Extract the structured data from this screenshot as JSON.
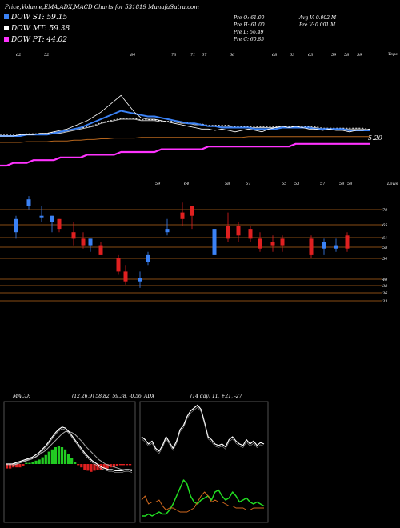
{
  "header": {
    "title": "Price,Volume,EMA,ADX,MACD Charts for 531819 MunafaSutra.com",
    "legend": [
      {
        "label": "DOW ST: 59.15",
        "color": "#3b82f6"
      },
      {
        "label": "DOW MT: 59.38",
        "color": "#ffffff"
      },
      {
        "label": "DOW PT: 44.02",
        "color": "#ff33ff"
      }
    ],
    "stats_left": [
      "Pre O: 61.00",
      "Pre H: 61.00",
      "Pre L: 56.49",
      "Pre C: 60.85"
    ],
    "stats_right": [
      "Avg V: 0.002 M",
      "Pre V: 0.001 M"
    ]
  },
  "chart_data": [
    {
      "type": "line",
      "name": "ema-panel",
      "top_label": "Tops",
      "top_numbers": [
        "62",
        "52",
        "84",
        "73",
        "71",
        "67",
        "66",
        "68",
        "63",
        "63",
        "59",
        "58",
        "59"
      ],
      "right_value_label": "5.20",
      "colors": {
        "st": "#3b82f6",
        "mt": "#ffffff",
        "pt": "#ff33ff",
        "lt": "#b5651d",
        "price": "#ffffff"
      },
      "price": [
        55,
        55,
        55,
        56,
        56,
        56,
        57,
        57,
        58,
        59,
        60,
        62,
        64,
        66,
        69,
        72,
        76,
        80,
        84,
        78,
        72,
        68,
        67,
        67,
        66,
        65,
        64,
        63,
        62,
        61,
        60,
        60,
        59,
        60,
        59,
        58,
        59,
        60,
        59,
        58,
        60,
        61,
        62,
        61,
        62,
        61,
        60,
        60,
        59,
        60,
        59,
        59,
        58,
        59,
        59,
        60
      ],
      "ema_st": [
        55,
        55,
        55,
        55,
        56,
        56,
        56,
        56,
        57,
        58,
        59,
        60,
        61,
        63,
        65,
        67,
        69,
        71,
        73,
        72,
        71,
        70,
        69,
        69,
        68,
        67,
        66,
        65,
        64,
        64,
        63,
        62,
        62,
        61,
        61,
        61,
        61,
        61,
        60,
        60,
        60,
        60,
        61,
        61,
        61,
        61,
        61,
        60,
        60,
        60,
        60,
        60,
        59,
        59,
        59,
        59
      ],
      "ema_mt": [
        55,
        55,
        55,
        55,
        56,
        56,
        56,
        56,
        57,
        57,
        58,
        59,
        60,
        61,
        62,
        64,
        65,
        66,
        67,
        67,
        67,
        66,
        66,
        66,
        65,
        65,
        65,
        64,
        64,
        63,
        63,
        62,
        62,
        62,
        62,
        61,
        61,
        61,
        61,
        61,
        61,
        61,
        61,
        61,
        61,
        61,
        61,
        61,
        60,
        60,
        60,
        60,
        60,
        60,
        60,
        59
      ],
      "ema_lt": [
        50,
        50,
        50,
        50,
        51,
        51,
        51,
        51,
        52,
        52,
        52,
        53,
        53,
        54,
        54,
        55,
        55,
        56,
        56,
        56,
        56,
        57,
        57,
        57,
        57,
        57,
        57,
        57,
        57,
        57,
        57,
        57,
        57,
        57,
        57,
        57,
        57,
        58,
        58,
        58,
        58,
        58,
        58,
        58,
        58,
        58,
        58,
        58,
        58,
        58,
        58,
        58,
        58,
        58,
        58,
        58
      ],
      "ema_pt": [
        36,
        36,
        37,
        37,
        37,
        38,
        38,
        38,
        38,
        39,
        39,
        39,
        39,
        40,
        40,
        40,
        40,
        40,
        41,
        41,
        41,
        41,
        41,
        41,
        42,
        42,
        42,
        42,
        42,
        42,
        42,
        43,
        43,
        43,
        43,
        43,
        43,
        43,
        43,
        43,
        43,
        43,
        43,
        43,
        44,
        44,
        44,
        44,
        44,
        44,
        44,
        44,
        44,
        44,
        44,
        44
      ]
    },
    {
      "type": "candlestick",
      "name": "price-panel",
      "low_label": "Lows",
      "low_numbers": [
        "59",
        "64",
        "58",
        "57",
        "55",
        "53",
        "57",
        "58",
        "58"
      ],
      "levels": [
        70,
        65,
        61,
        58,
        54,
        40,
        38,
        36,
        33
      ],
      "level_labels": [
        "70",
        "65",
        "61",
        "58",
        "54",
        "40",
        "38",
        "36",
        "33"
      ],
      "candles": [
        {
          "o": 62,
          "c": 66,
          "h": 67,
          "l": 60,
          "up": true
        },
        {
          "o": 70,
          "c": 72,
          "h": 73,
          "l": 69,
          "up": true
        },
        {
          "o": 67,
          "c": 67,
          "h": 70,
          "l": 65,
          "up": true
        },
        {
          "o": 65,
          "c": 67,
          "h": 67,
          "l": 62,
          "up": true
        },
        {
          "o": 66,
          "c": 63,
          "h": 66,
          "l": 62,
          "up": false
        },
        {
          "o": 62,
          "c": 60,
          "h": 65,
          "l": 58,
          "up": false
        },
        {
          "o": 60,
          "c": 58,
          "h": 62,
          "l": 57,
          "up": false
        },
        {
          "o": 58,
          "c": 60,
          "h": 60,
          "l": 56,
          "up": true
        },
        {
          "o": 58,
          "c": 55,
          "h": 59,
          "l": 55,
          "up": false
        },
        {
          "o": 54,
          "c": 50,
          "h": 55,
          "l": 49,
          "up": false
        },
        {
          "o": 50,
          "c": 47,
          "h": 52,
          "l": 46,
          "up": false
        },
        {
          "o": 47,
          "c": 48,
          "h": 50,
          "l": 45,
          "up": true
        },
        {
          "o": 53,
          "c": 55,
          "h": 56,
          "l": 52,
          "up": true
        },
        {
          "o": 62,
          "c": 63,
          "h": 66,
          "l": 61,
          "up": true
        },
        {
          "o": 68,
          "c": 66,
          "h": 71,
          "l": 64,
          "up": false
        },
        {
          "o": 70,
          "c": 67,
          "h": 70,
          "l": 63,
          "up": false
        },
        {
          "o": 63,
          "c": 55,
          "h": 63,
          "l": 55,
          "up": true
        },
        {
          "o": 64,
          "c": 60,
          "h": 68,
          "l": 59,
          "up": false
        },
        {
          "o": 64,
          "c": 61,
          "h": 65,
          "l": 59,
          "up": false
        },
        {
          "o": 63,
          "c": 60,
          "h": 64,
          "l": 59,
          "up": false
        },
        {
          "o": 60,
          "c": 57,
          "h": 62,
          "l": 56,
          "up": false
        },
        {
          "o": 59,
          "c": 58,
          "h": 61,
          "l": 56,
          "up": false
        },
        {
          "o": 60,
          "c": 58,
          "h": 61,
          "l": 56,
          "up": false
        },
        {
          "o": 60,
          "c": 55,
          "h": 61,
          "l": 54,
          "up": false
        },
        {
          "o": 57,
          "c": 59,
          "h": 60,
          "l": 55,
          "up": true
        },
        {
          "o": 57,
          "c": 58,
          "h": 60,
          "l": 56,
          "up": true
        },
        {
          "o": 61,
          "c": 57,
          "h": 62,
          "l": 56,
          "up": false
        }
      ]
    },
    {
      "type": "bar",
      "name": "macd-panel",
      "title": "MACD:",
      "values_label": "(12,26,9) 58.82, 59.38, -0.56",
      "macd": [
        0,
        0,
        0,
        0.1,
        0.2,
        0.3,
        0.4,
        0.5,
        0.6,
        0.8,
        1.0,
        1.3,
        1.6,
        2.0,
        2.4,
        2.8,
        3.1,
        3.3,
        3.2,
        2.9,
        2.5,
        2.1,
        1.7,
        1.3,
        0.9,
        0.6,
        0.3,
        0.1,
        -0.1,
        -0.3,
        -0.4,
        -0.5,
        -0.5,
        -0.6,
        -0.6,
        -0.6,
        -0.5,
        -0.5,
        -0.6
      ],
      "signal": [
        0,
        0,
        0,
        0,
        0.1,
        0.2,
        0.3,
        0.4,
        0.5,
        0.6,
        0.8,
        1.0,
        1.2,
        1.5,
        1.8,
        2.1,
        2.4,
        2.7,
        2.9,
        2.9,
        2.8,
        2.6,
        2.3,
        2.0,
        1.6,
        1.3,
        1.0,
        0.7,
        0.4,
        0.2,
        0,
        -0.1,
        -0.2,
        -0.3,
        -0.4,
        -0.5,
        -0.5,
        -0.5,
        -0.5
      ],
      "hist": [
        -0.4,
        -0.4,
        -0.3,
        -0.3,
        -0.3,
        -0.2,
        0.1,
        0.1,
        0.2,
        0.3,
        0.4,
        0.6,
        0.8,
        1.1,
        1.3,
        1.5,
        1.6,
        1.5,
        1.3,
        0.9,
        0.5,
        0.2,
        -0.1,
        -0.3,
        -0.5,
        -0.6,
        -0.7,
        -0.6,
        -0.5,
        -0.5,
        -0.4,
        -0.4,
        -0.3,
        -0.3,
        -0.2,
        -0.1,
        -0.1,
        -0.1,
        -0.1
      ],
      "colors": {
        "pos": "#22cc22",
        "neg": "#e02020",
        "line": "#ffffff"
      }
    },
    {
      "type": "line",
      "name": "adx-panel",
      "title": "ADX",
      "values_label": "(14 day) 11, +21, -27",
      "adx": [
        30,
        28,
        25,
        27,
        22,
        20,
        24,
        30,
        26,
        22,
        27,
        35,
        38,
        44,
        48,
        50,
        52,
        49,
        40,
        30,
        28,
        25,
        24,
        25,
        23,
        28,
        30,
        27,
        25,
        24,
        28,
        25,
        27,
        24,
        26,
        25
      ],
      "plus": [
        2,
        2,
        3,
        2,
        3,
        4,
        3,
        3,
        5,
        8,
        12,
        16,
        20,
        18,
        12,
        9,
        8,
        10,
        11,
        12,
        10,
        14,
        15,
        12,
        10,
        11,
        14,
        12,
        9,
        10,
        11,
        9,
        8,
        9,
        8,
        7
      ],
      "minus": [
        10,
        12,
        8,
        9,
        9,
        10,
        7,
        5,
        6,
        6,
        5,
        4,
        4,
        4,
        5,
        6,
        9,
        12,
        14,
        12,
        9,
        10,
        9,
        9,
        8,
        7,
        7,
        6,
        6,
        6,
        5,
        5,
        6,
        6,
        6,
        6
      ],
      "colors": {
        "adx": "#ffffff",
        "plus": "#22dd22",
        "minus": "#d2691e"
      }
    }
  ]
}
